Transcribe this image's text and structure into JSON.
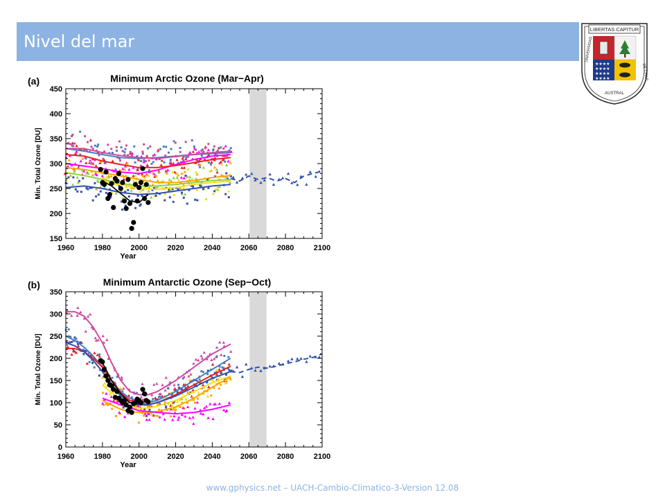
{
  "slide": {
    "title": "Nivel del mar",
    "footer": "www.gphysics.net – UACH-Cambio-Climatico-3-Version 12.08",
    "accent_color": "#8db3e2"
  },
  "logo": {
    "banner": "LIBERTAS CAPITUR",
    "ring_left": "UNIVERSIDAD",
    "ring_bottom": "AUSTRAL",
    "ring_right": "DE CHILE"
  },
  "chart_data": [
    {
      "type": "scatter",
      "panel_label": "(a)",
      "title": "Minimum Arctic Ozone (Mar−Apr)",
      "xlabel": "Year",
      "ylabel": "Min. Total Ozone [DU]",
      "xlim": [
        1960,
        2100
      ],
      "ylim": [
        150,
        450
      ],
      "xticks": [
        1960,
        1980,
        2000,
        2020,
        2040,
        2060,
        2080,
        2100
      ],
      "yticks": [
        150,
        200,
        250,
        300,
        350,
        400,
        450
      ],
      "shaded_region": [
        2060,
        2070
      ],
      "model_series": [
        {
          "color": "#ff00ff",
          "x": [
            1960,
            1970,
            1980,
            1990,
            2000,
            2010,
            2020,
            2030,
            2040,
            2050
          ],
          "y": [
            300,
            295,
            290,
            283,
            280,
            287,
            298,
            308,
            315,
            318
          ]
        },
        {
          "color": "#4a7fc0",
          "x": [
            1960,
            1970,
            1980,
            1990,
            2000,
            2010,
            2020,
            2030,
            2040,
            2050
          ],
          "y": [
            330,
            325,
            318,
            312,
            310,
            312,
            315,
            318,
            320,
            322
          ]
        },
        {
          "color": "#e8201c",
          "x": [
            1960,
            1970,
            1980,
            1990,
            2000,
            2010,
            2020,
            2030,
            2040,
            2050
          ],
          "y": [
            318,
            315,
            305,
            298,
            292,
            292,
            296,
            302,
            308,
            312
          ]
        },
        {
          "color": "#cc4ba0",
          "x": [
            1960,
            1970,
            1980,
            1990,
            2000,
            2010,
            2020,
            2030,
            2040,
            2050
          ],
          "y": [
            330,
            330,
            322,
            316,
            312,
            310,
            314,
            318,
            322,
            325
          ]
        },
        {
          "color": "#ffa500",
          "x": [
            1960,
            1970,
            1980,
            1990,
            2000,
            2010,
            2020,
            2030,
            2040,
            2050
          ],
          "y": [
            292,
            288,
            282,
            275,
            268,
            262,
            262,
            266,
            272,
            276
          ]
        },
        {
          "color": "#f0e020",
          "x": [
            1980,
            1990,
            2000,
            2010,
            2020,
            2030,
            2040,
            2050
          ],
          "y": [
            265,
            258,
            250,
            248,
            252,
            258,
            262,
            265
          ]
        },
        {
          "color": "#8fd040",
          "x": [
            1960,
            1970,
            1980,
            1990,
            2000,
            2010,
            2020,
            2030,
            2040,
            2050
          ],
          "y": [
            282,
            276,
            268,
            260,
            255,
            255,
            258,
            262,
            266,
            268
          ]
        },
        {
          "color": "#3050b0",
          "x": [
            1960,
            1970,
            1980,
            1990,
            2000,
            2010,
            2020,
            2030,
            2040,
            2050
          ],
          "y": [
            252,
            255,
            250,
            242,
            238,
            240,
            245,
            250,
            255,
            258
          ]
        },
        {
          "color": "#101010",
          "x": [
            1980,
            1985,
            1990,
            1995,
            2000,
            2005
          ],
          "y": [
            265,
            255,
            240,
            225,
            222,
            238
          ]
        }
      ],
      "scatter_colors": [
        "#ff00ff",
        "#4a7fc0",
        "#e8201c",
        "#ffa500",
        "#f0e020",
        "#8fd040",
        "#3050b0",
        "#cc4ba0"
      ],
      "observations": {
        "color": "#000000",
        "x": [
          1979,
          1980,
          1981,
          1982,
          1983,
          1984,
          1985,
          1986,
          1987,
          1988,
          1989,
          1990,
          1991,
          1992,
          1993,
          1994,
          1995,
          1996,
          1997,
          1998,
          1999,
          2000,
          2001,
          2002,
          2003,
          2004,
          2005
        ],
        "y": [
          288,
          262,
          258,
          283,
          230,
          238,
          260,
          212,
          270,
          265,
          280,
          250,
          262,
          225,
          210,
          268,
          220,
          170,
          182,
          258,
          225,
          252,
          262,
          290,
          230,
          258,
          222
        ]
      },
      "extension": {
        "color": "#3050b0",
        "x": [
          2050,
          2055,
          2060,
          2065,
          2070,
          2075,
          2080,
          2085,
          2090,
          2095,
          2100
        ],
        "y": [
          270,
          265,
          275,
          268,
          272,
          265,
          270,
          262,
          275,
          280,
          285
        ]
      }
    },
    {
      "type": "scatter",
      "panel_label": "(b)",
      "title": "Minimum Antarctic Ozone (Sep−Oct)",
      "xlabel": "Year",
      "ylabel": "Min. Total Ozone [DU]",
      "xlim": [
        1960,
        2100
      ],
      "ylim": [
        0,
        350
      ],
      "xticks": [
        1960,
        1980,
        2000,
        2020,
        2040,
        2060,
        2080,
        2100
      ],
      "yticks": [
        0,
        50,
        100,
        150,
        200,
        250,
        300,
        350
      ],
      "shaded_region": [
        2060,
        2070
      ],
      "model_series": [
        {
          "color": "#cc4ba0",
          "x": [
            1960,
            1965,
            1970,
            1975,
            1980,
            1985,
            1990,
            1995,
            2000,
            2005,
            2010,
            2020,
            2030,
            2040,
            2050
          ],
          "y": [
            305,
            305,
            295,
            270,
            235,
            190,
            150,
            125,
            118,
            118,
            125,
            150,
            180,
            210,
            232
          ]
        },
        {
          "color": "#4a7fc0",
          "x": [
            1960,
            1965,
            1970,
            1975,
            1980,
            1985,
            1990,
            1995,
            2000,
            2005,
            2010,
            2020,
            2030,
            2040,
            2050
          ],
          "y": [
            250,
            240,
            225,
            205,
            180,
            150,
            125,
            110,
            102,
            100,
            105,
            125,
            150,
            175,
            200
          ]
        },
        {
          "color": "#e8201c",
          "x": [
            1960,
            1965,
            1970,
            1975,
            1980,
            1985,
            1990,
            1995,
            2000,
            2005,
            2010,
            2020,
            2030,
            2040,
            2050
          ],
          "y": [
            222,
            222,
            215,
            200,
            180,
            150,
            122,
            105,
            98,
            96,
            100,
            118,
            140,
            162,
            182
          ]
        },
        {
          "color": "#3050b0",
          "x": [
            1960,
            1965,
            1970,
            1975,
            1980,
            1985,
            1990,
            1995,
            2000,
            2005,
            2010,
            2020,
            2030,
            2040,
            2050
          ],
          "y": [
            235,
            228,
            215,
            195,
            170,
            140,
            115,
            100,
            95,
            95,
            100,
            115,
            135,
            155,
            170
          ]
        },
        {
          "color": "#f0e020",
          "x": [
            1980,
            1985,
            1990,
            1995,
            2000,
            2005,
            2010,
            2020,
            2030,
            2040,
            2050
          ],
          "y": [
            140,
            122,
            105,
            92,
            88,
            88,
            92,
            105,
            125,
            145,
            160
          ]
        },
        {
          "color": "#ffa500",
          "x": [
            1980,
            1985,
            1990,
            1995,
            2000,
            2005,
            2010,
            2020,
            2030,
            2040,
            2050
          ],
          "y": [
            105,
            95,
            85,
            80,
            78,
            78,
            80,
            90,
            110,
            135,
            158
          ]
        },
        {
          "color": "#ff00ff",
          "x": [
            1980,
            1990,
            2000,
            2010,
            2020,
            2030,
            2040,
            2050
          ],
          "y": [
            110,
            95,
            82,
            78,
            75,
            78,
            85,
            95
          ]
        },
        {
          "color": "#101010",
          "x": [
            1980,
            1985,
            1990,
            1995,
            2000,
            2005
          ],
          "y": [
            190,
            150,
            120,
            100,
            98,
            105
          ]
        }
      ],
      "scatter_colors": [
        "#ff00ff",
        "#4a7fc0",
        "#e8201c",
        "#ffa500",
        "#f0e020",
        "#8fd040",
        "#3050b0",
        "#cc4ba0"
      ],
      "observations": {
        "color": "#000000",
        "x": [
          1979,
          1980,
          1981,
          1982,
          1983,
          1984,
          1985,
          1986,
          1987,
          1988,
          1989,
          1990,
          1991,
          1992,
          1993,
          1994,
          1995,
          1996,
          1997,
          1998,
          1999,
          2000,
          2001,
          2002,
          2003,
          2004,
          2005
        ],
        "y": [
          195,
          192,
          175,
          160,
          150,
          140,
          138,
          130,
          112,
          125,
          110,
          105,
          100,
          105,
          95,
          82,
          90,
          78,
          98,
          100,
          108,
          105,
          100,
          130,
          120,
          105,
          102
        ]
      },
      "extension": {
        "color": "#3050b0",
        "x": [
          2050,
          2055,
          2060,
          2065,
          2070,
          2075,
          2080,
          2085,
          2090,
          2095,
          2100
        ],
        "y": [
          170,
          168,
          175,
          180,
          178,
          182,
          188,
          192,
          198,
          202,
          210
        ]
      }
    }
  ]
}
